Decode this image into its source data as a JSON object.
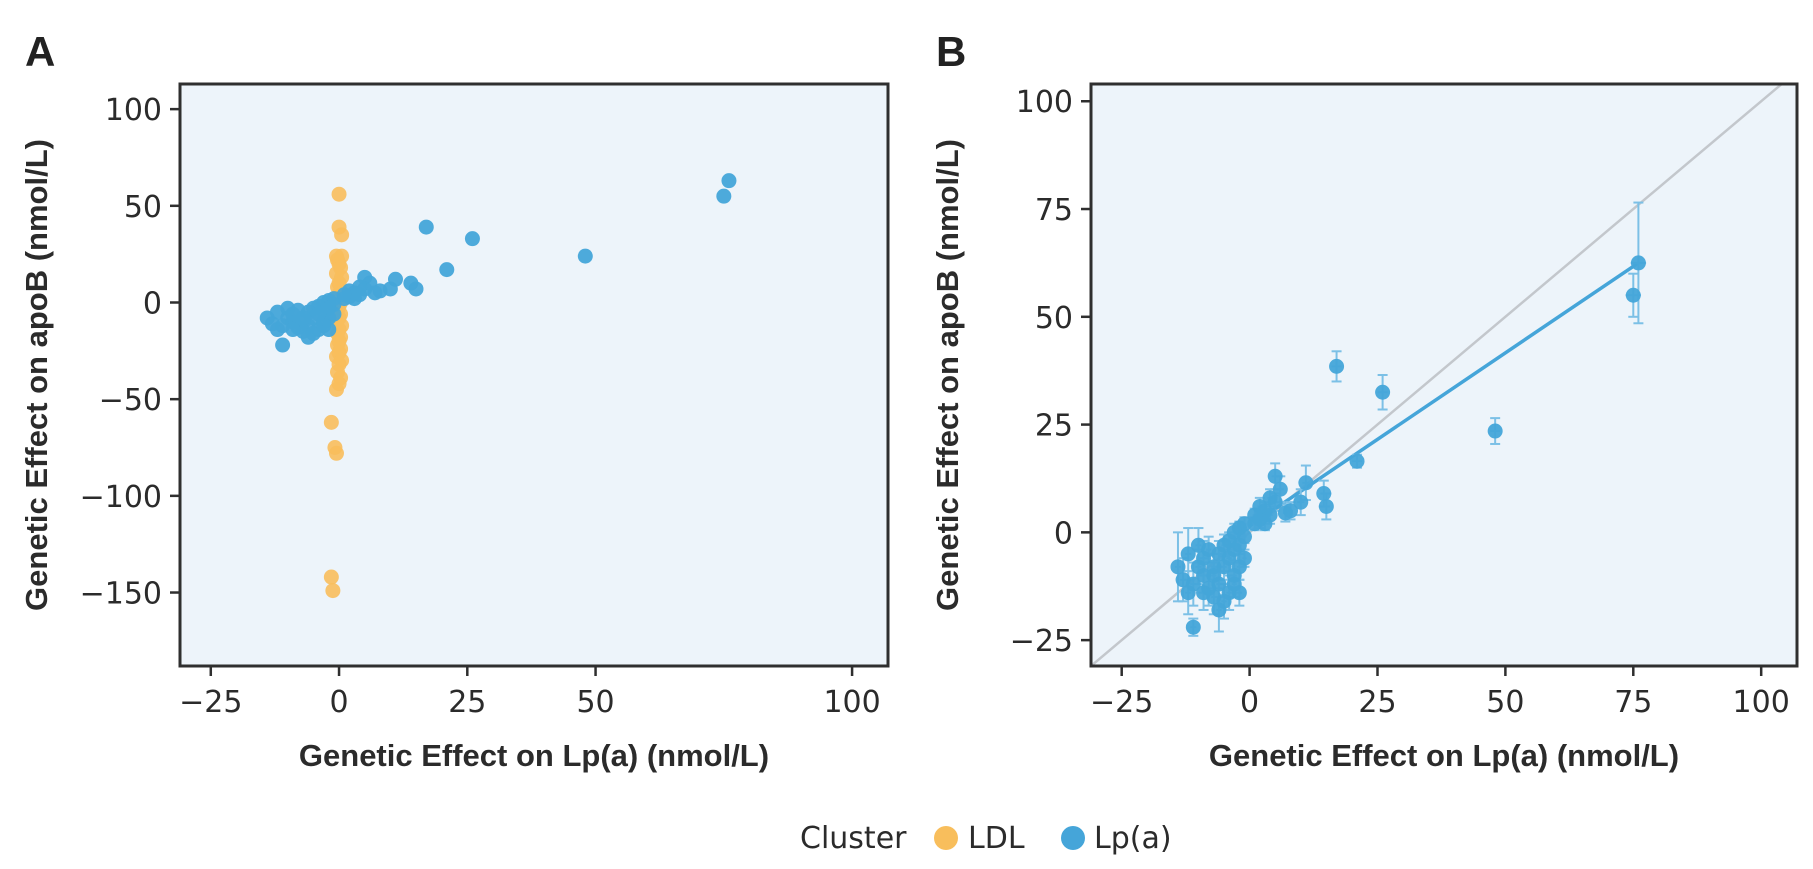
{
  "legend": {
    "title": "Cluster",
    "entries": [
      {
        "label": "LDL",
        "color": "#F8BE5C"
      },
      {
        "label": "Lp(a)",
        "color": "#45A5D9"
      }
    ]
  },
  "colors": {
    "panel_bg": "#EDF4FA",
    "ldl": "#F8BE5C",
    "lpa": "#45A5D9",
    "identity_line": "#C3C7CC",
    "fit_line": "#45A5D9",
    "error_bar": "#7CC0E6"
  },
  "chart_data": [
    {
      "panel": "A",
      "type": "scatter",
      "xlabel": "Genetic Effect on Lp(a) (nmol/L)",
      "ylabel": "Genetic Effect on apoB (nmol/L)",
      "xlim": [
        -31,
        107
      ],
      "ylim": [
        -188,
        113
      ],
      "xticks": [
        -25,
        0,
        25,
        50,
        100
      ],
      "yticks": [
        100,
        50,
        0,
        -50,
        -100,
        -150
      ],
      "grid": false,
      "series": [
        {
          "name": "LDL",
          "points": [
            [
              0,
              56
            ],
            [
              0,
              39
            ],
            [
              0.5,
              35
            ],
            [
              -0.5,
              24
            ],
            [
              0.5,
              24
            ],
            [
              -0.3,
              22
            ],
            [
              0,
              20
            ],
            [
              0.3,
              18
            ],
            [
              -0.5,
              15
            ],
            [
              0.5,
              13
            ],
            [
              0,
              10
            ],
            [
              -0.3,
              8
            ],
            [
              0.3,
              6
            ],
            [
              0,
              4
            ],
            [
              -0.3,
              2
            ],
            [
              0.3,
              0
            ],
            [
              0,
              -2
            ],
            [
              -0.3,
              -4
            ],
            [
              0.3,
              -6
            ],
            [
              0,
              -8
            ],
            [
              -0.5,
              -10
            ],
            [
              0.5,
              -12
            ],
            [
              0,
              -14
            ],
            [
              -0.3,
              -16
            ],
            [
              0.3,
              -18
            ],
            [
              0,
              -20
            ],
            [
              -0.3,
              -22
            ],
            [
              0.3,
              -24
            ],
            [
              0,
              -26
            ],
            [
              -0.5,
              -28
            ],
            [
              0.5,
              -30
            ],
            [
              0,
              -32
            ],
            [
              -0.3,
              -36
            ],
            [
              0.3,
              -39
            ],
            [
              0,
              -42
            ],
            [
              -0.5,
              -45
            ],
            [
              -1.5,
              -62
            ],
            [
              -0.8,
              -75
            ],
            [
              -0.5,
              -78
            ],
            [
              -1.5,
              -142
            ],
            [
              -1.2,
              -149
            ]
          ]
        },
        {
          "name": "Lp(a)",
          "points": [
            [
              76,
              63
            ],
            [
              75,
              55
            ],
            [
              17,
              39
            ],
            [
              26,
              33
            ],
            [
              48,
              24
            ],
            [
              21,
              17
            ],
            [
              5,
              13
            ],
            [
              11,
              12
            ],
            [
              14,
              10
            ],
            [
              15,
              7
            ],
            [
              6,
              10
            ],
            [
              8,
              6
            ],
            [
              10,
              7
            ],
            [
              7,
              5
            ],
            [
              4,
              4
            ],
            [
              3,
              5
            ],
            [
              2,
              3
            ],
            [
              1,
              2
            ],
            [
              3,
              2
            ],
            [
              5,
              7
            ],
            [
              4,
              8
            ],
            [
              2,
              6
            ],
            [
              1,
              4
            ],
            [
              -1,
              2
            ],
            [
              -2,
              1
            ],
            [
              -3,
              0
            ],
            [
              -1,
              -1
            ],
            [
              -2,
              -3
            ],
            [
              -4,
              -2
            ],
            [
              -3,
              -4
            ],
            [
              -5,
              -3
            ],
            [
              -6,
              -5
            ],
            [
              -5,
              -8
            ],
            [
              -7,
              -10
            ],
            [
              -6,
              -12
            ],
            [
              -8,
              -13
            ],
            [
              -7,
              -15
            ],
            [
              -9,
              -10
            ],
            [
              -10,
              -8
            ],
            [
              -11,
              -12
            ],
            [
              -12,
              -14
            ],
            [
              -13,
              -11
            ],
            [
              -14,
              -8
            ],
            [
              -11,
              -22
            ],
            [
              -12,
              -5
            ],
            [
              -10,
              -3
            ],
            [
              -9,
              -6
            ],
            [
              -8,
              -4
            ],
            [
              -6,
              -18
            ],
            [
              -4,
              -14
            ],
            [
              -5,
              -16
            ],
            [
              -3,
              -10
            ],
            [
              -2,
              -8
            ],
            [
              -4,
              -6
            ],
            [
              -3,
              -12
            ],
            [
              -2,
              -14
            ],
            [
              -1,
              -6
            ],
            [
              -7,
              -8
            ],
            [
              -9,
              -14
            ]
          ]
        }
      ]
    },
    {
      "panel": "B",
      "type": "scatter",
      "xlabel": "Genetic Effect on Lp(a) (nmol/L)",
      "ylabel": "Genetic Effect on apoB (nmol/L)",
      "xlim": [
        -31,
        107
      ],
      "ylim": [
        -31,
        104
      ],
      "xticks": [
        -25,
        0,
        25,
        50,
        75,
        100
      ],
      "yticks": [
        100,
        75,
        50,
        25,
        0,
        -25
      ],
      "grid": false,
      "identity_line": true,
      "fit_line": {
        "from": [
          0,
          1.5
        ],
        "to": [
          76,
          62.5
        ]
      },
      "series": [
        {
          "name": "Lp(a)",
          "points": [
            [
              76,
              62.5,
              14,
              1.5
            ],
            [
              75,
              55,
              5,
              1.5
            ],
            [
              17,
              38.5,
              3.5,
              1
            ],
            [
              26,
              32.5,
              4,
              1
            ],
            [
              48,
              23.5,
              3,
              1
            ],
            [
              21,
              16.5,
              1.5,
              1
            ],
            [
              5,
              13,
              3,
              0.7
            ],
            [
              11,
              11.5,
              4,
              0.7
            ],
            [
              14.5,
              9,
              3,
              0.7
            ],
            [
              15,
              6,
              3,
              0.7
            ],
            [
              6,
              10,
              3,
              0.7
            ],
            [
              8,
              5,
              2,
              0.5
            ],
            [
              10,
              7,
              3,
              0.7
            ],
            [
              7,
              4.5,
              2,
              0.5
            ],
            [
              4,
              4,
              2,
              0.5
            ],
            [
              3,
              5,
              2,
              0.5
            ],
            [
              2,
              3,
              2,
              0.5
            ],
            [
              1,
              2,
              1.5,
              0.4
            ],
            [
              3,
              2,
              1.5,
              0.4
            ],
            [
              5,
              7,
              2,
              0.5
            ],
            [
              4,
              8,
              2,
              0.5
            ],
            [
              2,
              6,
              2,
              0.5
            ],
            [
              1,
              4,
              1.5,
              0.4
            ],
            [
              -1,
              2,
              1.5,
              0.4
            ],
            [
              -2,
              1,
              1.5,
              0.4
            ],
            [
              -3,
              0,
              2,
              0.5
            ],
            [
              -1,
              -1,
              1.5,
              0.4
            ],
            [
              -2,
              -3,
              2,
              0.5
            ],
            [
              -4,
              -2,
              2,
              0.5
            ],
            [
              -3,
              -4,
              2.5,
              0.5
            ],
            [
              -5,
              -3,
              2.5,
              0.5
            ],
            [
              -6,
              -5,
              3,
              0.5
            ],
            [
              -5,
              -8,
              3,
              0.5
            ],
            [
              -7,
              -10,
              3,
              0.5
            ],
            [
              -6,
              -12,
              3,
              0.5
            ],
            [
              -8,
              -13,
              4,
              0.5
            ],
            [
              -7,
              -15,
              4,
              0.5
            ],
            [
              -9,
              -10,
              4,
              0.5
            ],
            [
              -10,
              -8,
              4,
              0.6
            ],
            [
              -11,
              -12,
              5,
              0.6
            ],
            [
              -12,
              -14,
              5,
              0.6
            ],
            [
              -13,
              -11,
              5,
              0.6
            ],
            [
              -14,
              -8,
              8,
              0.6
            ],
            [
              -11,
              -22,
              2,
              0.6
            ],
            [
              -12,
              -5,
              6,
              0.6
            ],
            [
              -10,
              -3,
              4,
              0.6
            ],
            [
              -9,
              -6,
              4,
              0.6
            ],
            [
              -8,
              -4,
              3,
              0.5
            ],
            [
              -6,
              -18,
              5,
              0.5
            ],
            [
              -4,
              -14,
              4,
              0.5
            ],
            [
              -5,
              -16,
              4,
              0.5
            ],
            [
              -3,
              -10,
              3,
              0.5
            ],
            [
              -2,
              -8,
              3,
              0.5
            ],
            [
              -4,
              -6,
              3,
              0.5
            ],
            [
              -3,
              -12,
              3,
              0.5
            ],
            [
              -2,
              -14,
              3,
              0.5
            ],
            [
              -1,
              -6,
              2,
              0.4
            ],
            [
              -7,
              -8,
              3,
              0.5
            ],
            [
              -9,
              -14,
              4,
              0.5
            ]
          ]
        }
      ]
    }
  ]
}
